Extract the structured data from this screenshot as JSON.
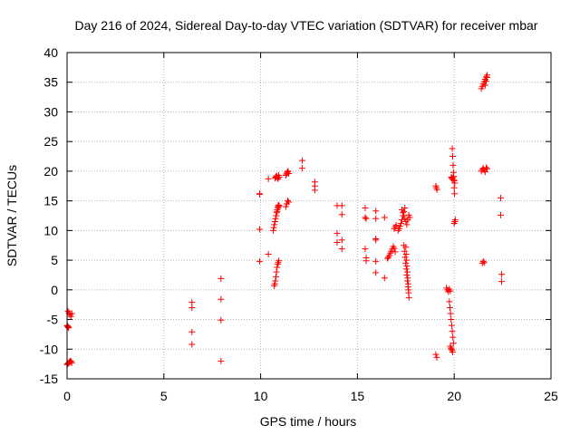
{
  "chart_data": {
    "type": "scatter",
    "title": "Day 216 of 2024, Sidereal Day-to-day VTEC variation (SDTVAR) for receiver mbar",
    "xlabel": "GPS time / hours",
    "ylabel": "SDTVAR / TECUs",
    "xlim": [
      0,
      25
    ],
    "ylim": [
      -15,
      40
    ],
    "xticks": [
      0,
      5,
      10,
      15,
      20,
      25
    ],
    "yticks": [
      -15,
      -10,
      -5,
      0,
      5,
      10,
      15,
      20,
      25,
      30,
      35,
      40
    ],
    "grid": true,
    "marker": "plus",
    "color": "#ff0000",
    "series": [
      {
        "name": "SDTVAR",
        "x": [
          0.0,
          0.03,
          0.06,
          0.09,
          0.12,
          0.15,
          0.18,
          0.21,
          0.24,
          0.0,
          0.02,
          0.04,
          0.06,
          0.08,
          0.05,
          0.1,
          0.15,
          0.2,
          0.25,
          6.45,
          6.45,
          6.45,
          6.45,
          7.95,
          7.95,
          7.95,
          7.95,
          9.95,
          9.95,
          9.95,
          9.95,
          10.4,
          10.4,
          10.65,
          10.68,
          10.71,
          10.74,
          10.77,
          10.8,
          10.83,
          10.86,
          10.89,
          10.92,
          10.95,
          10.7,
          10.73,
          10.76,
          10.79,
          10.82,
          10.85,
          10.88,
          10.91,
          10.94,
          10.75,
          10.78,
          10.81,
          10.84,
          10.87,
          10.9,
          10.93,
          10.96,
          10.8,
          10.85,
          10.9,
          10.95,
          11.3,
          11.33,
          11.36,
          11.39,
          11.42,
          11.45,
          11.3,
          11.35,
          11.4,
          11.45,
          12.15,
          12.15,
          12.8,
          12.8,
          12.8,
          13.95,
          13.95,
          13.95,
          14.2,
          14.2,
          14.2,
          14.2,
          15.4,
          15.4,
          15.4,
          15.45,
          15.45,
          15.45,
          15.95,
          15.95,
          15.95,
          15.95,
          15.95,
          15.95,
          16.4,
          16.4,
          16.55,
          16.6,
          16.65,
          16.7,
          16.75,
          16.8,
          16.85,
          16.9,
          16.95,
          16.9,
          16.95,
          17.0,
          17.1,
          17.15,
          17.2,
          17.25,
          17.3,
          17.35,
          17.4,
          17.45,
          17.3,
          17.35,
          17.4,
          17.45,
          17.5,
          17.55,
          17.6,
          17.65,
          17.7,
          17.4,
          17.43,
          17.46,
          17.49,
          17.52,
          17.55,
          17.58,
          17.61,
          17.64,
          17.5,
          17.52,
          17.54,
          17.56,
          17.58,
          17.6,
          17.62,
          17.64,
          17.66,
          19.05,
          19.08,
          19.11,
          19.05,
          19.1,
          19.6,
          19.65,
          19.7,
          19.75,
          19.8,
          19.75,
          19.78,
          19.81,
          19.84,
          19.87,
          19.9,
          19.93,
          19.96,
          19.8,
          19.83,
          19.86,
          19.89,
          19.92,
          19.9,
          19.92,
          19.94,
          19.96,
          19.98,
          20.0,
          20.02,
          19.85,
          19.88,
          19.91,
          19.94,
          19.97,
          20.0,
          20.03,
          20.0,
          20.03,
          20.06,
          21.4,
          21.45,
          21.5,
          21.55,
          21.6,
          21.65,
          21.7,
          21.4,
          21.45,
          21.5,
          21.55,
          21.6,
          21.65,
          21.7,
          21.45,
          21.5,
          21.55,
          21.6,
          21.65,
          21.7,
          22.4,
          22.4,
          22.45,
          22.45
        ],
        "y": [
          -12.6,
          -12.5,
          -12.4,
          -12.3,
          -12.2,
          -12.1,
          -12.0,
          -12.1,
          -12.3,
          -6.0,
          -6.1,
          -6.2,
          -6.3,
          -6.4,
          -3.6,
          -3.9,
          -4.2,
          -4.5,
          -4.0,
          -2.1,
          -3.0,
          -7.1,
          -9.2,
          1.9,
          -1.6,
          -5.1,
          -12.0,
          16.1,
          10.2,
          4.8,
          16.2,
          18.7,
          6.0,
          10.0,
          10.5,
          11.0,
          11.5,
          12.0,
          12.5,
          13.0,
          13.5,
          14.0,
          14.3,
          14.1,
          0.7,
          1.0,
          1.5,
          2.2,
          3.0,
          3.8,
          4.3,
          4.6,
          4.9,
          18.8,
          19.0,
          19.2,
          19.1,
          18.9,
          18.7,
          19.3,
          19.0,
          12.5,
          13.2,
          13.8,
          14.2,
          19.3,
          19.5,
          19.7,
          19.9,
          20.0,
          19.6,
          14.0,
          14.5,
          15.0,
          14.8,
          21.8,
          20.5,
          18.2,
          17.5,
          16.8,
          14.2,
          9.5,
          8.0,
          14.2,
          12.7,
          8.4,
          6.9,
          13.8,
          12.2,
          6.9,
          12.0,
          5.4,
          4.9,
          13.3,
          12.0,
          8.6,
          8.4,
          4.8,
          2.9,
          12.2,
          2.0,
          5.3,
          5.5,
          5.8,
          6.2,
          6.5,
          6.9,
          7.3,
          7.0,
          6.4,
          10.3,
          10.6,
          10.9,
          10.0,
          10.3,
          10.7,
          11.2,
          11.8,
          12.5,
          13.2,
          13.8,
          13.5,
          13.0,
          12.5,
          12.0,
          11.5,
          11.0,
          11.8,
          12.6,
          12.2,
          7.5,
          6.5,
          5.5,
          4.5,
          3.5,
          2.5,
          1.5,
          0.5,
          -0.5,
          7.2,
          6.0,
          5.0,
          4.0,
          3.0,
          2.0,
          1.0,
          0.0,
          -1.3,
          17.5,
          17.2,
          16.9,
          -10.9,
          -11.4,
          0.3,
          0.0,
          -0.3,
          0.1,
          -0.2,
          -2.0,
          -3.0,
          -4.0,
          -5.0,
          -6.0,
          -7.0,
          -8.0,
          -9.0,
          -9.5,
          -9.8,
          -10.0,
          -10.2,
          -10.5,
          23.8,
          22.5,
          21.0,
          19.8,
          18.5,
          17.2,
          16.2,
          19.0,
          18.8,
          18.6,
          18.9,
          19.1,
          18.4,
          18.0,
          11.2,
          11.5,
          11.8,
          33.9,
          34.3,
          34.7,
          35.1,
          35.5,
          35.9,
          36.2,
          20.0,
          20.3,
          20.5,
          20.2,
          19.9,
          20.6,
          20.4,
          4.5,
          4.8,
          4.6,
          34.5,
          35.2,
          35.8,
          15.5,
          12.6,
          2.6,
          1.4
        ]
      }
    ]
  }
}
